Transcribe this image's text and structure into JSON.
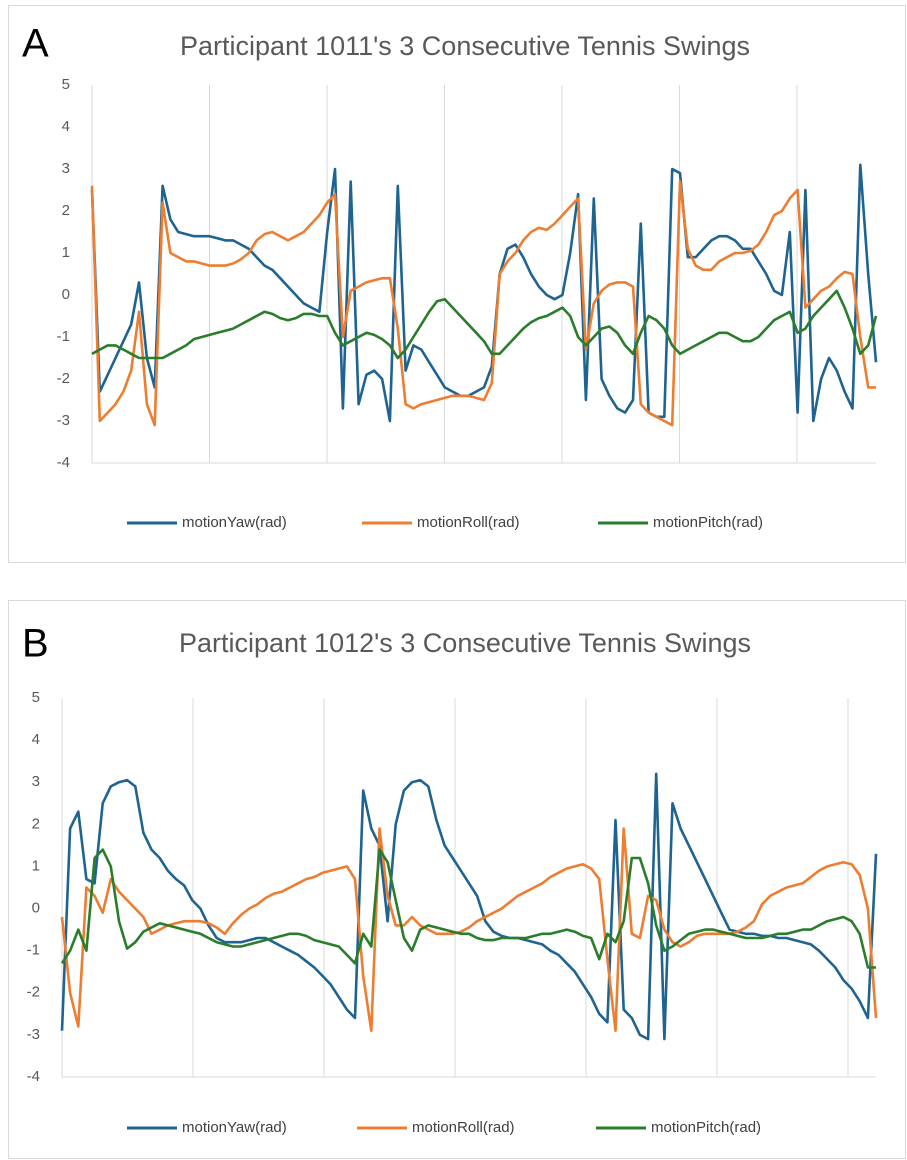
{
  "chart_data": [
    {
      "type": "line",
      "label": "A",
      "title": "Participant 1011's 3 Consecutive Tennis Swings",
      "ylim": [
        -4,
        5
      ],
      "yticks": [
        -4,
        -3,
        -2,
        -1,
        0,
        1,
        2,
        3,
        4,
        5
      ],
      "grid": "vertical",
      "legend": "bottom",
      "series": [
        {
          "name": "motionYaw(rad)",
          "color": "#1f6391",
          "values": [
            2.5,
            -2.3,
            -1.9,
            -1.5,
            -1.1,
            -0.7,
            0.3,
            -1.5,
            -2.2,
            2.6,
            1.8,
            1.5,
            1.45,
            1.4,
            1.4,
            1.4,
            1.35,
            1.3,
            1.3,
            1.2,
            1.1,
            0.9,
            0.7,
            0.6,
            0.4,
            0.2,
            0,
            -0.2,
            -0.3,
            -0.4,
            1.5,
            3.0,
            -2.7,
            2.7,
            -2.6,
            -1.9,
            -1.8,
            -2.0,
            -3.0,
            2.6,
            -1.8,
            -1.2,
            -1.3,
            -1.6,
            -1.9,
            -2.2,
            -2.3,
            -2.4,
            -2.4,
            -2.3,
            -2.2,
            -1.7,
            0.5,
            1.1,
            1.2,
            0.9,
            0.5,
            0.2,
            0,
            -0.1,
            0,
            1.0,
            2.4,
            -2.5,
            2.3,
            -2.0,
            -2.4,
            -2.7,
            -2.8,
            -2.5,
            1.7,
            -2.8,
            -2.9,
            -2.9,
            3.0,
            2.9,
            0.9,
            0.9,
            1.1,
            1.3,
            1.4,
            1.4,
            1.3,
            1.1,
            1.1,
            0.8,
            0.5,
            0.1,
            0,
            1.5,
            -2.8,
            2.5,
            -3.0,
            -2.0,
            -1.5,
            -1.8,
            -2.3,
            -2.7,
            3.1,
            0.5,
            -1.6
          ]
        },
        {
          "name": "motionRoll(rad)",
          "color": "#ed7d31",
          "values": [
            2.6,
            -3.0,
            -2.8,
            -2.6,
            -2.3,
            -1.8,
            -0.4,
            -2.6,
            -3.1,
            2.2,
            1.0,
            0.9,
            0.8,
            0.8,
            0.75,
            0.7,
            0.7,
            0.7,
            0.75,
            0.85,
            1.0,
            1.3,
            1.45,
            1.5,
            1.4,
            1.3,
            1.4,
            1.5,
            1.7,
            1.9,
            2.2,
            2.4,
            -1.0,
            0.1,
            0.2,
            0.3,
            0.35,
            0.4,
            0.4,
            -0.8,
            -2.6,
            -2.7,
            -2.6,
            -2.55,
            -2.5,
            -2.45,
            -2.4,
            -2.4,
            -2.4,
            -2.45,
            -2.5,
            -2.1,
            0.5,
            0.8,
            1.0,
            1.3,
            1.5,
            1.6,
            1.55,
            1.7,
            1.9,
            2.1,
            2.3,
            -1.3,
            -0.2,
            0.1,
            0.25,
            0.3,
            0.3,
            0.2,
            -2.6,
            -2.8,
            -2.9,
            -3.0,
            -3.1,
            2.7,
            1.1,
            0.7,
            0.6,
            0.6,
            0.8,
            0.9,
            1.0,
            1.0,
            1.05,
            1.2,
            1.5,
            1.9,
            2.0,
            2.3,
            2.5,
            -0.3,
            -0.1,
            0.1,
            0.2,
            0.4,
            0.55,
            0.5,
            -1.0,
            -2.2,
            -2.2
          ]
        },
        {
          "name": "motionPitch(rad)",
          "color": "#2a7d2a",
          "values": [
            -1.4,
            -1.3,
            -1.2,
            -1.2,
            -1.3,
            -1.4,
            -1.5,
            -1.5,
            -1.5,
            -1.5,
            -1.4,
            -1.3,
            -1.2,
            -1.05,
            -1.0,
            -0.95,
            -0.9,
            -0.85,
            -0.8,
            -0.7,
            -0.6,
            -0.5,
            -0.4,
            -0.45,
            -0.55,
            -0.6,
            -0.55,
            -0.45,
            -0.45,
            -0.5,
            -0.5,
            -0.9,
            -1.2,
            -1.1,
            -1.0,
            -0.9,
            -0.95,
            -1.05,
            -1.2,
            -1.5,
            -1.3,
            -1.0,
            -0.7,
            -0.4,
            -0.15,
            -0.1,
            -0.3,
            -0.5,
            -0.7,
            -0.9,
            -1.1,
            -1.4,
            -1.4,
            -1.2,
            -1.0,
            -0.8,
            -0.65,
            -0.55,
            -0.5,
            -0.4,
            -0.3,
            -0.5,
            -1.0,
            -1.2,
            -1.0,
            -0.8,
            -0.75,
            -0.9,
            -1.2,
            -1.4,
            -0.9,
            -0.5,
            -0.6,
            -0.8,
            -1.2,
            -1.4,
            -1.3,
            -1.2,
            -1.1,
            -1.0,
            -0.9,
            -0.9,
            -1.0,
            -1.1,
            -1.1,
            -1.0,
            -0.8,
            -0.6,
            -0.5,
            -0.4,
            -0.9,
            -0.8,
            -0.5,
            -0.3,
            -0.1,
            0.1,
            -0.3,
            -0.8,
            -1.4,
            -1.2,
            -0.5
          ]
        }
      ]
    },
    {
      "type": "line",
      "label": "B",
      "title": "Participant 1012's 3 Consecutive Tennis Swings",
      "ylim": [
        -4,
        5
      ],
      "yticks": [
        -4,
        -3,
        -2,
        -1,
        0,
        1,
        2,
        3,
        4,
        5
      ],
      "grid": "vertical",
      "legend": "bottom",
      "series": [
        {
          "name": "motionYaw(rad)",
          "color": "#1f6391",
          "values": [
            -2.9,
            1.9,
            2.3,
            0.7,
            0.6,
            2.5,
            2.9,
            3.0,
            3.05,
            2.9,
            1.8,
            1.4,
            1.2,
            0.9,
            0.7,
            0.55,
            0.2,
            0,
            -0.4,
            -0.7,
            -0.8,
            -0.8,
            -0.8,
            -0.75,
            -0.7,
            -0.7,
            -0.8,
            -0.9,
            -1.0,
            -1.1,
            -1.25,
            -1.4,
            -1.6,
            -1.8,
            -2.1,
            -2.4,
            -2.6,
            2.8,
            1.9,
            1.5,
            -0.3,
            2.0,
            2.8,
            3.0,
            3.05,
            2.9,
            2.1,
            1.5,
            1.2,
            0.9,
            0.6,
            0.3,
            -0.3,
            -0.55,
            -0.65,
            -0.7,
            -0.7,
            -0.75,
            -0.8,
            -0.85,
            -1.0,
            -1.1,
            -1.3,
            -1.5,
            -1.8,
            -2.1,
            -2.5,
            -2.7,
            2.1,
            -2.4,
            -2.6,
            -3.0,
            -3.1,
            3.2,
            -3.1,
            2.5,
            1.9,
            1.5,
            1.1,
            0.7,
            0.3,
            -0.1,
            -0.5,
            -0.55,
            -0.6,
            -0.6,
            -0.65,
            -0.65,
            -0.7,
            -0.7,
            -0.75,
            -0.8,
            -0.85,
            -1.0,
            -1.2,
            -1.4,
            -1.7,
            -1.9,
            -2.2,
            -2.6,
            1.3
          ]
        },
        {
          "name": "motionRoll(rad)",
          "color": "#ed7d31",
          "values": [
            -0.2,
            -2.0,
            -2.8,
            0.5,
            0.3,
            -0.1,
            0.7,
            0.4,
            0.2,
            0,
            -0.2,
            -0.6,
            -0.5,
            -0.4,
            -0.35,
            -0.3,
            -0.3,
            -0.3,
            -0.35,
            -0.45,
            -0.6,
            -0.35,
            -0.15,
            0,
            0.1,
            0.25,
            0.35,
            0.4,
            0.5,
            0.6,
            0.7,
            0.75,
            0.85,
            0.9,
            0.95,
            1.0,
            0.7,
            -1.6,
            -2.9,
            1.9,
            0.3,
            -0.4,
            -0.4,
            -0.2,
            -0.4,
            -0.5,
            -0.6,
            -0.6,
            -0.6,
            -0.55,
            -0.45,
            -0.3,
            -0.2,
            -0.1,
            0,
            0.15,
            0.3,
            0.4,
            0.5,
            0.6,
            0.75,
            0.85,
            0.95,
            1.0,
            1.05,
            0.95,
            0.7,
            -1.2,
            -2.9,
            1.9,
            -0.6,
            -0.7,
            0.3,
            0.2,
            -0.5,
            -0.8,
            -0.9,
            -0.8,
            -0.65,
            -0.6,
            -0.6,
            -0.6,
            -0.6,
            -0.55,
            -0.45,
            -0.3,
            0.1,
            0.3,
            0.4,
            0.5,
            0.55,
            0.6,
            0.75,
            0.9,
            1.0,
            1.05,
            1.1,
            1.05,
            0.8,
            0,
            -2.6
          ]
        },
        {
          "name": "motionPitch(rad)",
          "color": "#2a7d2a",
          "values": [
            -1.3,
            -1.0,
            -0.5,
            -1.0,
            1.2,
            1.4,
            1.0,
            -0.3,
            -0.95,
            -0.8,
            -0.55,
            -0.45,
            -0.35,
            -0.4,
            -0.45,
            -0.5,
            -0.55,
            -0.6,
            -0.7,
            -0.8,
            -0.85,
            -0.9,
            -0.9,
            -0.85,
            -0.8,
            -0.75,
            -0.7,
            -0.65,
            -0.6,
            -0.6,
            -0.65,
            -0.75,
            -0.8,
            -0.85,
            -0.9,
            -1.1,
            -1.3,
            -0.6,
            -0.9,
            1.4,
            1.1,
            0.2,
            -0.7,
            -1.0,
            -0.5,
            -0.4,
            -0.45,
            -0.5,
            -0.55,
            -0.6,
            -0.6,
            -0.7,
            -0.75,
            -0.75,
            -0.7,
            -0.7,
            -0.7,
            -0.7,
            -0.65,
            -0.6,
            -0.6,
            -0.55,
            -0.5,
            -0.55,
            -0.65,
            -0.7,
            -1.2,
            -0.6,
            -0.8,
            -0.3,
            1.2,
            1.2,
            0.6,
            -0.4,
            -1.0,
            -0.9,
            -0.75,
            -0.6,
            -0.55,
            -0.5,
            -0.5,
            -0.55,
            -0.6,
            -0.65,
            -0.7,
            -0.7,
            -0.7,
            -0.65,
            -0.6,
            -0.6,
            -0.55,
            -0.5,
            -0.5,
            -0.4,
            -0.3,
            -0.25,
            -0.2,
            -0.3,
            -0.6,
            -1.4,
            -1.4
          ]
        }
      ]
    }
  ]
}
